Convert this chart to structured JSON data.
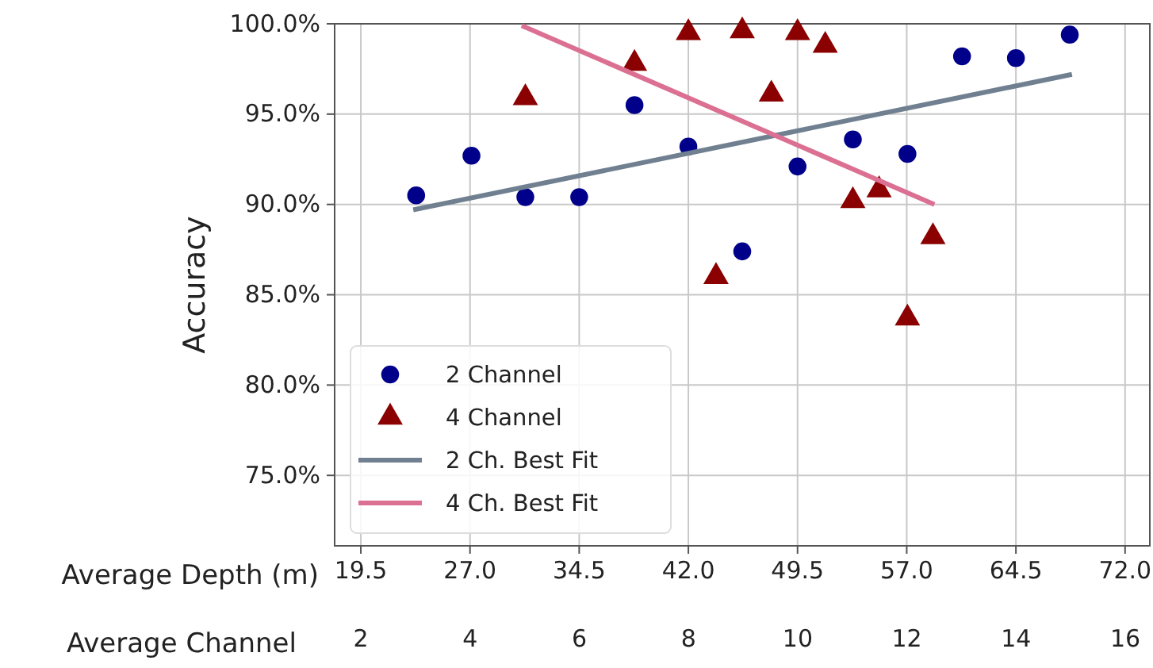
{
  "chart_data": {
    "type": "scatter",
    "xlabel": "Average Depth (m)",
    "ylabel": "Accuracy",
    "x2label": "Average Channel",
    "xlim": [
      17.7,
      73.7
    ],
    "xticks": [
      {
        "value": 19.5,
        "label": "19.5"
      },
      {
        "value": 27,
        "label": "27.0"
      },
      {
        "value": 34.5,
        "label": "34.5"
      },
      {
        "value": 42,
        "label": "42.0"
      },
      {
        "value": 49.5,
        "label": "49.5"
      },
      {
        "value": 57,
        "label": "57.0"
      },
      {
        "value": 64.5,
        "label": "64.5"
      },
      {
        "value": 72,
        "label": "72.0"
      }
    ],
    "x2lim": [
      1.52,
      16.45
    ],
    "x2ticks": [
      2,
      4,
      6,
      8,
      10,
      12,
      14,
      16
    ],
    "ylim": [
      71.1,
      100
    ],
    "yticks": [
      {
        "value": 75,
        "label": "75.0%"
      },
      {
        "value": 80,
        "label": "80.0%"
      },
      {
        "value": 85,
        "label": "85.0%"
      },
      {
        "value": 90,
        "label": "90.0%"
      },
      {
        "value": 95,
        "label": "95.0%"
      },
      {
        "value": 100,
        "label": "100.0%"
      }
    ],
    "grid": true,
    "legend": "bottom left",
    "series": [
      {
        "name": "2 Channel",
        "marker": "circle",
        "color": "#00008b",
        "x": [
          23.3,
          27.1,
          30.8,
          34.5,
          38.3,
          42.0,
          45.7,
          49.5,
          53.3,
          57.05,
          60.8,
          64.5,
          68.2
        ],
        "values": [
          90.5,
          92.7,
          90.4,
          90.4,
          95.5,
          93.2,
          87.4,
          92.1,
          93.6,
          92.8,
          98.2,
          98.1,
          99.4
        ]
      },
      {
        "name": "4 Channel",
        "marker": "triangle",
        "color": "#8b0000",
        "x": [
          30.8,
          38.3,
          42.0,
          43.9,
          45.7,
          47.7,
          49.5,
          51.4,
          53.3,
          55.1,
          57.05,
          58.8
        ],
        "values": [
          95.9,
          97.8,
          99.5,
          86.0,
          99.6,
          96.1,
          99.5,
          98.8,
          90.2,
          90.8,
          83.7,
          88.2
        ]
      },
      {
        "name": "2 Ch. Best Fit",
        "type": "line",
        "color": "#708090",
        "x": [
          23.1,
          68.35
        ],
        "values": [
          89.7,
          97.2
        ]
      },
      {
        "name": "4 Ch. Best Fit",
        "type": "line",
        "color": "#db7093",
        "x": [
          30.55,
          58.9
        ],
        "values": [
          99.9,
          90.0
        ]
      }
    ]
  }
}
